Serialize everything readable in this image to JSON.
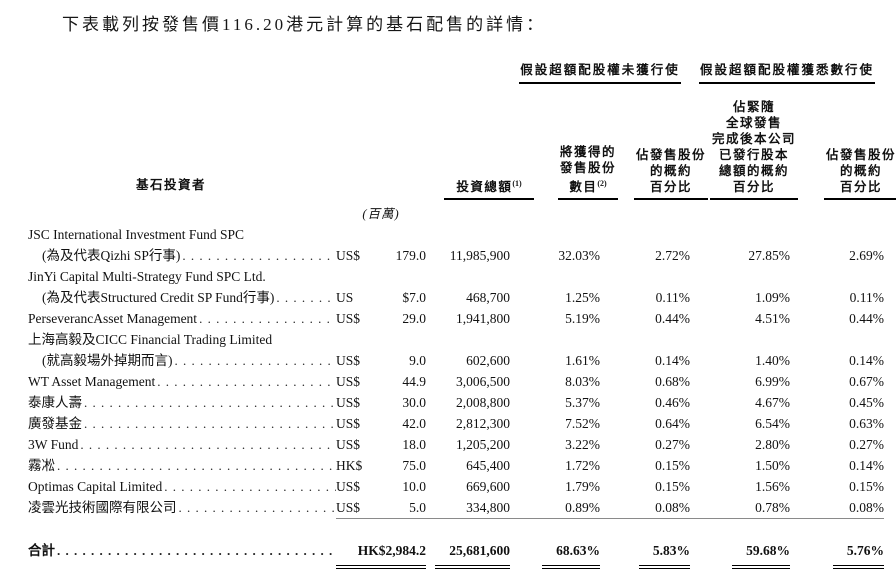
{
  "title": "下表載列按發售價116.20港元計算的基石配售的詳情：",
  "table": {
    "header": {
      "group_no_exercise": "假設超額配股權未獲行使",
      "group_full_exercise": "假設超額配股權獲悉數行使",
      "investor": "基石投資者",
      "investment_label": "投資總額",
      "investment_note": "(1)",
      "investment_unit": "(百萬)",
      "shares_lines": [
        "將獲得的",
        "發售股份",
        "數目"
      ],
      "shares_note": "(2)",
      "pct_offer_lines": [
        "佔發售股份",
        "的概約",
        "百分比"
      ],
      "pct_capital_lines": [
        "佔緊隨",
        "全球發售",
        "完成後本公司",
        "已發行股本",
        "總額的概約",
        "百分比"
      ]
    },
    "rows": [
      {
        "name": "JSC International Investment Fund SPC",
        "indent": false,
        "dots": false,
        "currency": "",
        "amount": "",
        "shares": "",
        "pct_offer_no": "",
        "pct_cap_no": "",
        "pct_offer_full": "",
        "pct_cap_full": ""
      },
      {
        "name": "(為及代表Qizhi SP行事)",
        "indent": true,
        "dots": true,
        "currency": "US$",
        "amount": "179.0",
        "shares": "11,985,900",
        "pct_offer_no": "32.03%",
        "pct_cap_no": "2.72%",
        "pct_offer_full": "27.85%",
        "pct_cap_full": "2.69%"
      },
      {
        "name": "JinYi Capital Multi-Strategy Fund SPC Ltd.",
        "indent": false,
        "dots": false,
        "currency": "",
        "amount": "",
        "shares": "",
        "pct_offer_no": "",
        "pct_cap_no": "",
        "pct_offer_full": "",
        "pct_cap_full": ""
      },
      {
        "name": "(為及代表Structured Credit SP Fund行事)",
        "indent": true,
        "dots": true,
        "currency": "US",
        "amount": "$7.0",
        "shares": "468,700",
        "pct_offer_no": "1.25%",
        "pct_cap_no": "0.11%",
        "pct_offer_full": "1.09%",
        "pct_cap_full": "0.11%"
      },
      {
        "name": "PerseverancAsset Management",
        "indent": false,
        "dots": true,
        "currency": "US$",
        "amount": "29.0",
        "shares": "1,941,800",
        "pct_offer_no": "5.19%",
        "pct_cap_no": "0.44%",
        "pct_offer_full": "4.51%",
        "pct_cap_full": "0.44%"
      },
      {
        "name": "上海高毅及CICC Financial Trading Limited",
        "indent": false,
        "dots": false,
        "currency": "",
        "amount": "",
        "shares": "",
        "pct_offer_no": "",
        "pct_cap_no": "",
        "pct_offer_full": "",
        "pct_cap_full": ""
      },
      {
        "name": "(就高毅場外掉期而言)",
        "indent": true,
        "dots": true,
        "currency": "US$",
        "amount": "9.0",
        "shares": "602,600",
        "pct_offer_no": "1.61%",
        "pct_cap_no": "0.14%",
        "pct_offer_full": "1.40%",
        "pct_cap_full": "0.14%"
      },
      {
        "name": "WT Asset Management",
        "indent": false,
        "dots": true,
        "currency": "US$",
        "amount": "44.9",
        "shares": "3,006,500",
        "pct_offer_no": "8.03%",
        "pct_cap_no": "0.68%",
        "pct_offer_full": "6.99%",
        "pct_cap_full": "0.67%"
      },
      {
        "name": "泰康人壽",
        "indent": false,
        "dots": true,
        "currency": "US$",
        "amount": "30.0",
        "shares": "2,008,800",
        "pct_offer_no": "5.37%",
        "pct_cap_no": "0.46%",
        "pct_offer_full": "4.67%",
        "pct_cap_full": "0.45%"
      },
      {
        "name": "廣發基金",
        "indent": false,
        "dots": true,
        "currency": "US$",
        "amount": "42.0",
        "shares": "2,812,300",
        "pct_offer_no": "7.52%",
        "pct_cap_no": "0.64%",
        "pct_offer_full": "6.54%",
        "pct_cap_full": "0.63%"
      },
      {
        "name": "3W Fund",
        "indent": false,
        "dots": true,
        "currency": "US$",
        "amount": "18.0",
        "shares": "1,205,200",
        "pct_offer_no": "3.22%",
        "pct_cap_no": "0.27%",
        "pct_offer_full": "2.80%",
        "pct_cap_full": "0.27%"
      },
      {
        "name": "霧凇",
        "indent": false,
        "dots": true,
        "currency": "HK$",
        "amount": "75.0",
        "shares": "645,400",
        "pct_offer_no": "1.72%",
        "pct_cap_no": "0.15%",
        "pct_offer_full": "1.50%",
        "pct_cap_full": "0.14%"
      },
      {
        "name": "Optimas Capital Limited",
        "indent": false,
        "dots": true,
        "currency": "US$",
        "amount": "10.0",
        "shares": "669,600",
        "pct_offer_no": "1.79%",
        "pct_cap_no": "0.15%",
        "pct_offer_full": "1.56%",
        "pct_cap_full": "0.15%"
      },
      {
        "name": "凌雲光技術國際有限公司",
        "indent": false,
        "dots": true,
        "currency": "US$",
        "amount": "5.0",
        "shares": "334,800",
        "pct_offer_no": "0.89%",
        "pct_cap_no": "0.08%",
        "pct_offer_full": "0.78%",
        "pct_cap_full": "0.08%"
      }
    ],
    "total": {
      "label": "合計",
      "investment": "HK$2,984.2",
      "shares": "25,681,600",
      "pct_offer_no": "68.63%",
      "pct_cap_no": "5.83%",
      "pct_offer_full": "59.68%",
      "pct_cap_full": "5.76%"
    }
  },
  "colors": {
    "text": "#111111",
    "rule": "#000000",
    "light_rule": "#8a8a8a"
  }
}
